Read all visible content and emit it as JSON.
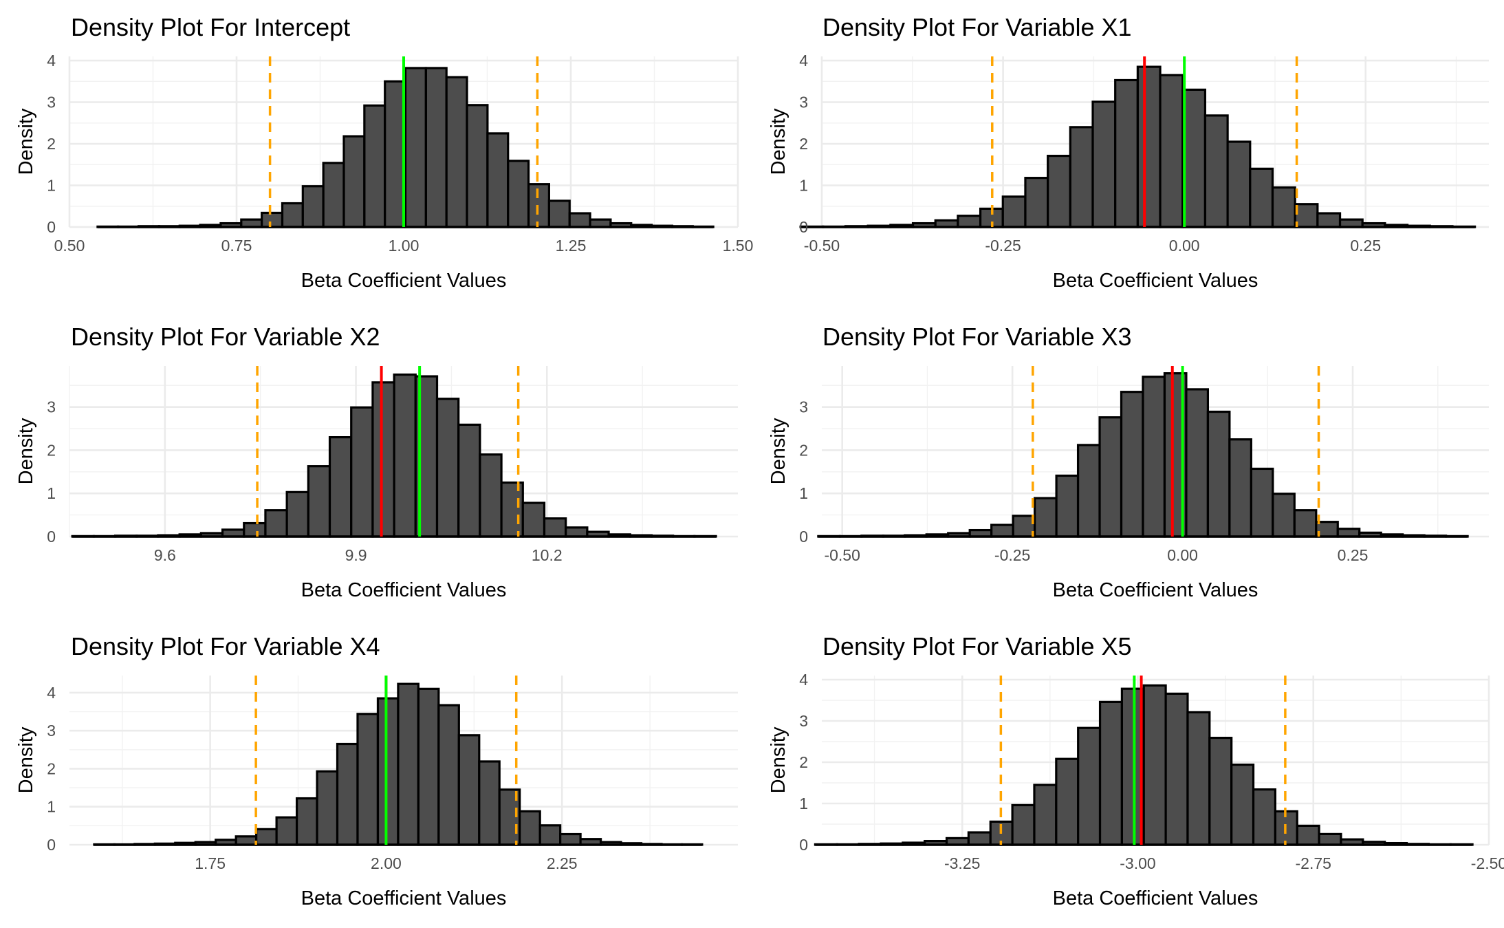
{
  "chart_data": [
    {
      "type": "bar",
      "title": "Density Plot For Intercept",
      "xlabel": "Beta Coefficient Values",
      "ylabel": "Density",
      "xlim": [
        0.5,
        1.5
      ],
      "ylim": [
        0,
        4.1
      ],
      "xticks": [
        "0.50",
        "0.75",
        "1.00",
        "1.25",
        "1.50"
      ],
      "yticks": [
        "0",
        "1",
        "2",
        "3",
        "4"
      ],
      "bins": {
        "start": 0.5421,
        "width": 0.0307,
        "values": [
          0.01,
          0.01,
          0.02,
          0.02,
          0.03,
          0.05,
          0.09,
          0.18,
          0.34,
          0.57,
          0.98,
          1.54,
          2.18,
          2.92,
          3.5,
          3.82,
          3.82,
          3.6,
          2.93,
          2.25,
          1.59,
          1.03,
          0.63,
          0.33,
          0.18,
          0.09,
          0.05,
          0.03,
          0.02,
          0.01
        ]
      },
      "lines": [
        {
          "role": "ci-lower",
          "x": 0.8,
          "color": "#FFA500",
          "dash": true
        },
        {
          "role": "ci-upper",
          "x": 1.2,
          "color": "#FFA500",
          "dash": true
        },
        {
          "role": "estimate",
          "x": 1.0,
          "color": "#FF0000",
          "dash": false
        },
        {
          "role": "true-value",
          "x": 1.0,
          "color": "#00FF00",
          "dash": false
        }
      ]
    },
    {
      "type": "bar",
      "title": "Density Plot For Variable X1",
      "xlabel": "Beta Coefficient Values",
      "ylabel": "Density",
      "xlim": [
        -0.5,
        0.42
      ],
      "ylim": [
        0,
        4.1
      ],
      "xticks": [
        "-0.50",
        "-0.25",
        "0.00",
        "0.25"
      ],
      "yticks": [
        "0",
        "1",
        "2",
        "3",
        "4"
      ],
      "bins": {
        "start": -0.5293,
        "width": 0.031,
        "values": [
          0.01,
          0.01,
          0.02,
          0.03,
          0.05,
          0.09,
          0.16,
          0.27,
          0.44,
          0.73,
          1.18,
          1.71,
          2.4,
          3.01,
          3.53,
          3.85,
          3.65,
          3.3,
          2.68,
          2.05,
          1.4,
          0.95,
          0.55,
          0.33,
          0.18,
          0.09,
          0.05,
          0.03,
          0.02,
          0.01
        ]
      },
      "lines": [
        {
          "role": "ci-lower",
          "x": -0.265,
          "color": "#FFA500",
          "dash": true
        },
        {
          "role": "ci-upper",
          "x": 0.155,
          "color": "#FFA500",
          "dash": true
        },
        {
          "role": "estimate",
          "x": -0.055,
          "color": "#FF0000",
          "dash": false
        },
        {
          "role": "true-value",
          "x": 0.0,
          "color": "#00FF00",
          "dash": false
        }
      ]
    },
    {
      "type": "bar",
      "title": "Density Plot For Variable X2",
      "xlabel": "Beta Coefficient Values",
      "ylabel": "Density",
      "xlim": [
        9.45,
        10.5
      ],
      "ylim": [
        0,
        3.95
      ],
      "xticks": [
        "9.6",
        "9.9",
        "10.2"
      ],
      "yticks": [
        "0",
        "1",
        "2",
        "3"
      ],
      "bins": {
        "start": 9.4545,
        "width": 0.0337,
        "values": [
          0.01,
          0.01,
          0.02,
          0.02,
          0.03,
          0.05,
          0.08,
          0.16,
          0.31,
          0.61,
          1.03,
          1.63,
          2.3,
          2.99,
          3.57,
          3.75,
          3.71,
          3.19,
          2.59,
          1.9,
          1.25,
          0.78,
          0.42,
          0.21,
          0.11,
          0.05,
          0.03,
          0.02,
          0.01,
          0.01
        ]
      },
      "lines": [
        {
          "role": "ci-lower",
          "x": 9.745,
          "color": "#FFA500",
          "dash": true
        },
        {
          "role": "ci-upper",
          "x": 10.155,
          "color": "#FFA500",
          "dash": true
        },
        {
          "role": "estimate",
          "x": 9.94,
          "color": "#FF0000",
          "dash": false
        },
        {
          "role": "true-value",
          "x": 10.0,
          "color": "#00FF00",
          "dash": false
        }
      ]
    },
    {
      "type": "bar",
      "title": "Density Plot For Variable X3",
      "xlabel": "Beta Coefficient Values",
      "ylabel": "Density",
      "xlim": [
        -0.53,
        0.45
      ],
      "ylim": [
        0,
        3.95
      ],
      "xticks": [
        "-0.50",
        "-0.25",
        "0.00",
        "0.25"
      ],
      "yticks": [
        "0",
        "1",
        "2",
        "3"
      ],
      "bins": {
        "start": -0.5352,
        "width": 0.0318,
        "values": [
          0.01,
          0.01,
          0.02,
          0.02,
          0.03,
          0.05,
          0.08,
          0.15,
          0.27,
          0.48,
          0.89,
          1.41,
          2.12,
          2.76,
          3.35,
          3.7,
          3.78,
          3.41,
          2.89,
          2.25,
          1.57,
          0.99,
          0.61,
          0.34,
          0.18,
          0.09,
          0.05,
          0.03,
          0.02,
          0.01
        ]
      },
      "lines": [
        {
          "role": "ci-lower",
          "x": -0.22,
          "color": "#FFA500",
          "dash": true
        },
        {
          "role": "ci-upper",
          "x": 0.2,
          "color": "#FFA500",
          "dash": true
        },
        {
          "role": "estimate",
          "x": -0.015,
          "color": "#FF0000",
          "dash": false
        },
        {
          "role": "true-value",
          "x": 0.0,
          "color": "#00FF00",
          "dash": false
        }
      ]
    },
    {
      "type": "bar",
      "title": "Density Plot For Variable X4",
      "xlabel": "Beta Coefficient Values",
      "ylabel": "Density",
      "xlim": [
        1.55,
        2.5
      ],
      "ylim": [
        0,
        4.45
      ],
      "xticks": [
        "1.75",
        "2.00",
        "2.25"
      ],
      "yticks": [
        "0",
        "1",
        "2",
        "3",
        "4"
      ],
      "bins": {
        "start": 1.5851,
        "width": 0.0288,
        "values": [
          0.01,
          0.01,
          0.02,
          0.03,
          0.05,
          0.07,
          0.13,
          0.22,
          0.41,
          0.72,
          1.22,
          1.93,
          2.65,
          3.44,
          3.85,
          4.23,
          4.1,
          3.67,
          2.88,
          2.19,
          1.45,
          0.88,
          0.51,
          0.28,
          0.15,
          0.07,
          0.04,
          0.02,
          0.01,
          0.01
        ]
      },
      "lines": [
        {
          "role": "ci-lower",
          "x": 1.815,
          "color": "#FFA500",
          "dash": true
        },
        {
          "role": "ci-upper",
          "x": 2.185,
          "color": "#FFA500",
          "dash": true
        },
        {
          "role": "estimate",
          "x": 2.0,
          "color": "#FF0000",
          "dash": false
        },
        {
          "role": "true-value",
          "x": 2.0,
          "color": "#00FF00",
          "dash": false
        }
      ]
    },
    {
      "type": "bar",
      "title": "Density Plot For Variable X5",
      "xlabel": "Beta Coefficient Values",
      "ylabel": "Density",
      "xlim": [
        -3.45,
        -2.5
      ],
      "ylim": [
        0,
        4.1
      ],
      "xticks": [
        "-3.25",
        "-3.00",
        "-2.75",
        "-2.50"
      ],
      "yticks": [
        "0",
        "1",
        "2",
        "3",
        "4"
      ],
      "bins": {
        "start": -3.4594,
        "width": 0.0312,
        "values": [
          0.01,
          0.01,
          0.02,
          0.03,
          0.05,
          0.09,
          0.16,
          0.3,
          0.56,
          0.96,
          1.45,
          2.08,
          2.83,
          3.46,
          3.78,
          3.86,
          3.66,
          3.21,
          2.59,
          1.94,
          1.34,
          0.81,
          0.46,
          0.26,
          0.13,
          0.07,
          0.04,
          0.02,
          0.01,
          0.01
        ]
      },
      "lines": [
        {
          "role": "ci-lower",
          "x": -3.195,
          "color": "#FFA500",
          "dash": true
        },
        {
          "role": "ci-upper",
          "x": -2.79,
          "color": "#FFA500",
          "dash": true
        },
        {
          "role": "estimate",
          "x": -2.995,
          "color": "#FF0000",
          "dash": false
        },
        {
          "role": "true-value",
          "x": -3.005,
          "color": "#00FF00",
          "dash": false
        }
      ]
    }
  ]
}
